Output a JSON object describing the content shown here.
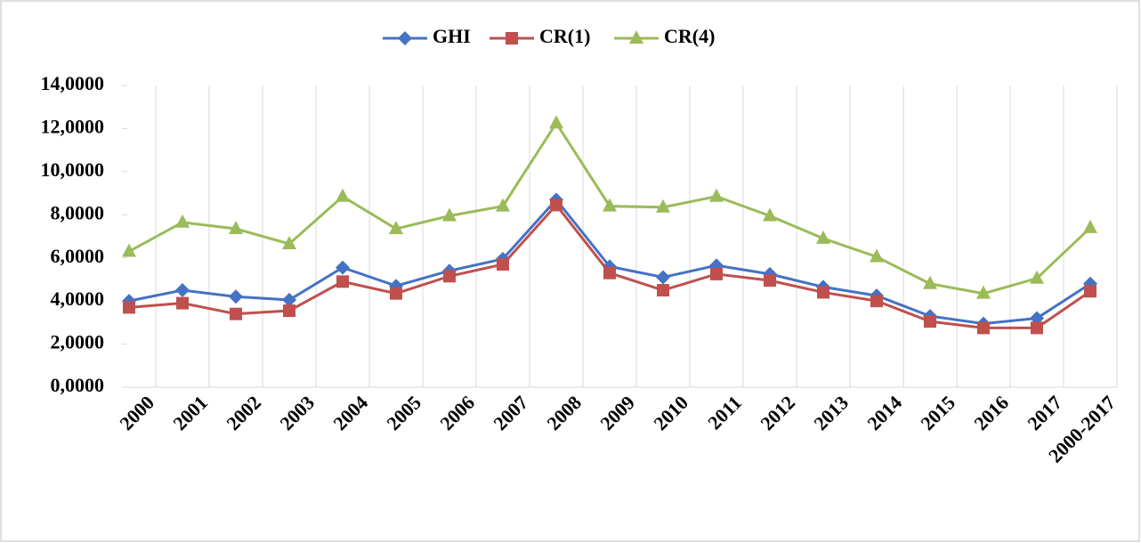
{
  "chart_data": {
    "type": "line",
    "categories": [
      "2000",
      "2001",
      "2002",
      "2003",
      "2004",
      "2005",
      "2006",
      "2007",
      "2008",
      "2009",
      "2010",
      "2011",
      "2012",
      "2013",
      "2014",
      "2015",
      "2016",
      "2017",
      "2000-2017"
    ],
    "series": [
      {
        "name": "GHI",
        "color": "#4472c4",
        "marker": "diamond",
        "values": [
          4.0,
          4.5,
          4.2,
          4.05,
          5.55,
          4.7,
          5.4,
          5.95,
          8.7,
          5.6,
          5.1,
          5.65,
          5.25,
          4.65,
          4.25,
          3.3,
          2.95,
          3.2,
          4.8
        ]
      },
      {
        "name": "CR(1)",
        "color": "#c0504d",
        "marker": "square",
        "values": [
          3.7,
          3.9,
          3.4,
          3.55,
          4.9,
          4.35,
          5.15,
          5.7,
          8.45,
          5.3,
          4.5,
          5.25,
          4.95,
          4.4,
          4.0,
          3.05,
          2.75,
          2.75,
          4.45
        ]
      },
      {
        "name": "CR(4)",
        "color": "#9bbb59",
        "marker": "triangle",
        "values": [
          6.3,
          7.65,
          7.35,
          6.65,
          8.85,
          7.35,
          7.95,
          8.4,
          12.25,
          8.4,
          8.35,
          8.85,
          7.95,
          6.9,
          6.05,
          4.8,
          4.35,
          5.05,
          7.4
        ]
      }
    ],
    "ylim": [
      0,
      14
    ],
    "yticks": [
      {
        "value": 0,
        "label": "0,0000"
      },
      {
        "value": 2,
        "label": "2,0000"
      },
      {
        "value": 4,
        "label": "4,0000"
      },
      {
        "value": 6,
        "label": "6,0000"
      },
      {
        "value": 8,
        "label": "8,0000"
      },
      {
        "value": 10,
        "label": "10,0000"
      },
      {
        "value": 12,
        "label": "12,0000"
      },
      {
        "value": 14,
        "label": "14,0000"
      }
    ],
    "grid": true,
    "legend": "top"
  }
}
